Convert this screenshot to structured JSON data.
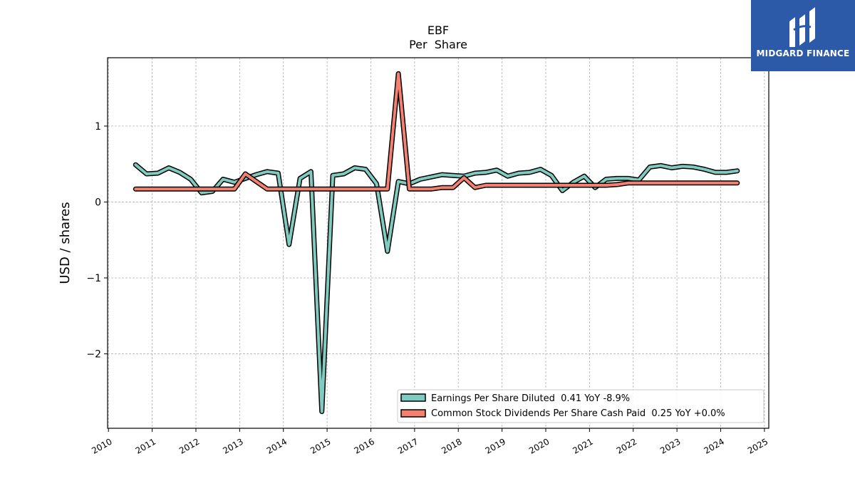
{
  "logo": {
    "brand": "MIDGARD FINANCE",
    "brand_color": "#2c5aa8"
  },
  "chart_data": {
    "type": "line",
    "title": "EBF",
    "subtitle": "Per  Share",
    "xlabel": "",
    "ylabel": "USD / shares",
    "xlim": [
      2009.98,
      2025.1
    ],
    "ylim": [
      -2.98,
      1.9
    ],
    "x_ticks": [
      2010,
      2011,
      2012,
      2013,
      2014,
      2015,
      2016,
      2017,
      2018,
      2019,
      2020,
      2021,
      2022,
      2023,
      2024,
      2025
    ],
    "y_ticks": [
      1,
      0,
      -1,
      -2
    ],
    "y_tick_labels": [
      "1",
      "0",
      "−1",
      "−2"
    ],
    "grid": true,
    "legend_position": "lower-right",
    "series": [
      {
        "name": "Earnings Per Share Diluted  0.41 YoY -8.9%",
        "color": "#80cbc0",
        "x": [
          2010.62,
          2010.87,
          2011.13,
          2011.38,
          2011.63,
          2011.88,
          2012.13,
          2012.38,
          2012.62,
          2012.88,
          2013.13,
          2013.38,
          2013.63,
          2013.88,
          2014.13,
          2014.38,
          2014.63,
          2014.88,
          2015.13,
          2015.38,
          2015.63,
          2015.88,
          2016.13,
          2016.38,
          2016.63,
          2016.88,
          2017.13,
          2017.38,
          2017.63,
          2017.88,
          2018.13,
          2018.38,
          2018.63,
          2018.88,
          2019.13,
          2019.38,
          2019.63,
          2019.88,
          2020.13,
          2020.38,
          2020.63,
          2020.88,
          2021.13,
          2021.38,
          2021.63,
          2021.88,
          2022.13,
          2022.38,
          2022.63,
          2022.88,
          2023.13,
          2023.38,
          2023.63,
          2023.88,
          2024.13,
          2024.38
        ],
        "values": [
          0.49,
          0.37,
          0.38,
          0.45,
          0.39,
          0.3,
          0.12,
          0.14,
          0.3,
          0.26,
          0.31,
          0.36,
          0.4,
          0.38,
          -0.56,
          0.31,
          0.4,
          -2.76,
          0.35,
          0.37,
          0.45,
          0.43,
          0.24,
          -0.65,
          0.27,
          0.24,
          0.3,
          0.33,
          0.36,
          0.35,
          0.34,
          0.38,
          0.39,
          0.42,
          0.34,
          0.38,
          0.39,
          0.43,
          0.35,
          0.15,
          0.26,
          0.34,
          0.19,
          0.3,
          0.31,
          0.31,
          0.29,
          0.46,
          0.48,
          0.45,
          0.47,
          0.46,
          0.43,
          0.39,
          0.39,
          0.41
        ]
      },
      {
        "name": "Common Stock Dividends Per Share Cash Paid  0.25 YoY +0.0%",
        "color": "#f4806f",
        "x": [
          2010.62,
          2010.87,
          2011.13,
          2011.38,
          2011.63,
          2011.88,
          2012.13,
          2012.38,
          2012.62,
          2012.88,
          2013.13,
          2013.38,
          2013.63,
          2013.88,
          2014.13,
          2014.38,
          2014.63,
          2014.88,
          2015.13,
          2015.38,
          2015.63,
          2015.88,
          2016.13,
          2016.38,
          2016.63,
          2016.88,
          2017.13,
          2017.38,
          2017.63,
          2017.88,
          2018.13,
          2018.38,
          2018.63,
          2018.88,
          2019.13,
          2019.38,
          2019.63,
          2019.88,
          2020.13,
          2020.38,
          2020.63,
          2020.88,
          2021.13,
          2021.38,
          2021.63,
          2021.88,
          2022.13,
          2022.38,
          2022.63,
          2022.88,
          2023.13,
          2023.38,
          2023.63,
          2023.88,
          2024.13,
          2024.38
        ],
        "values": [
          0.17,
          0.17,
          0.17,
          0.17,
          0.17,
          0.17,
          0.17,
          0.17,
          0.17,
          0.17,
          0.37,
          0.27,
          0.17,
          0.17,
          0.17,
          0.17,
          0.17,
          0.17,
          0.17,
          0.17,
          0.17,
          0.17,
          0.17,
          0.17,
          1.69,
          0.17,
          0.17,
          0.17,
          0.19,
          0.19,
          0.32,
          0.19,
          0.22,
          0.22,
          0.22,
          0.22,
          0.22,
          0.22,
          0.22,
          0.22,
          0.22,
          0.22,
          0.22,
          0.22,
          0.23,
          0.25,
          0.25,
          0.25,
          0.25,
          0.25,
          0.25,
          0.25,
          0.25,
          0.25,
          0.25,
          0.25
        ]
      }
    ]
  }
}
